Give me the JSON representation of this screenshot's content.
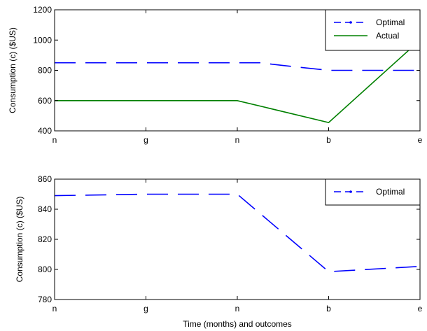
{
  "chart_data": [
    {
      "type": "line",
      "title": "",
      "xlabel": "",
      "ylabel": "Consumption (c) ($US)",
      "categories": [
        "n",
        "g",
        "n",
        "b",
        "e"
      ],
      "x": [
        0,
        1,
        2,
        3,
        4
      ],
      "ylim": [
        400,
        1200
      ],
      "yticks": [
        400,
        600,
        800,
        1000,
        1200
      ],
      "grid": false,
      "legend_position": "top-right",
      "series": [
        {
          "name": "Optimal",
          "color": "#0000ff",
          "style": "dashed",
          "x": [
            0,
            1,
            2,
            2.25,
            2.5,
            3,
            3.5,
            4
          ],
          "values": [
            850,
            850,
            850,
            850,
            832,
            800,
            800,
            800
          ]
        },
        {
          "name": "Actual",
          "color": "#008000",
          "style": "solid",
          "x": [
            0,
            1,
            2,
            3,
            4
          ],
          "values": [
            600,
            600,
            600,
            455,
            1000
          ]
        }
      ]
    },
    {
      "type": "line",
      "title": "",
      "xlabel": "Time (months) and outcomes",
      "ylabel": "Consumption (c) ($US)",
      "categories": [
        "n",
        "g",
        "n",
        "b",
        "e"
      ],
      "x": [
        0,
        1,
        2,
        3,
        4
      ],
      "ylim": [
        780,
        860
      ],
      "yticks": [
        780,
        800,
        820,
        840,
        860
      ],
      "grid": false,
      "legend_position": "top-right",
      "series": [
        {
          "name": "Optimal",
          "color": "#0000ff",
          "style": "dashed",
          "x": [
            0,
            1,
            2,
            3,
            4
          ],
          "values": [
            849,
            850,
            850,
            798.5,
            802
          ]
        }
      ]
    }
  ]
}
